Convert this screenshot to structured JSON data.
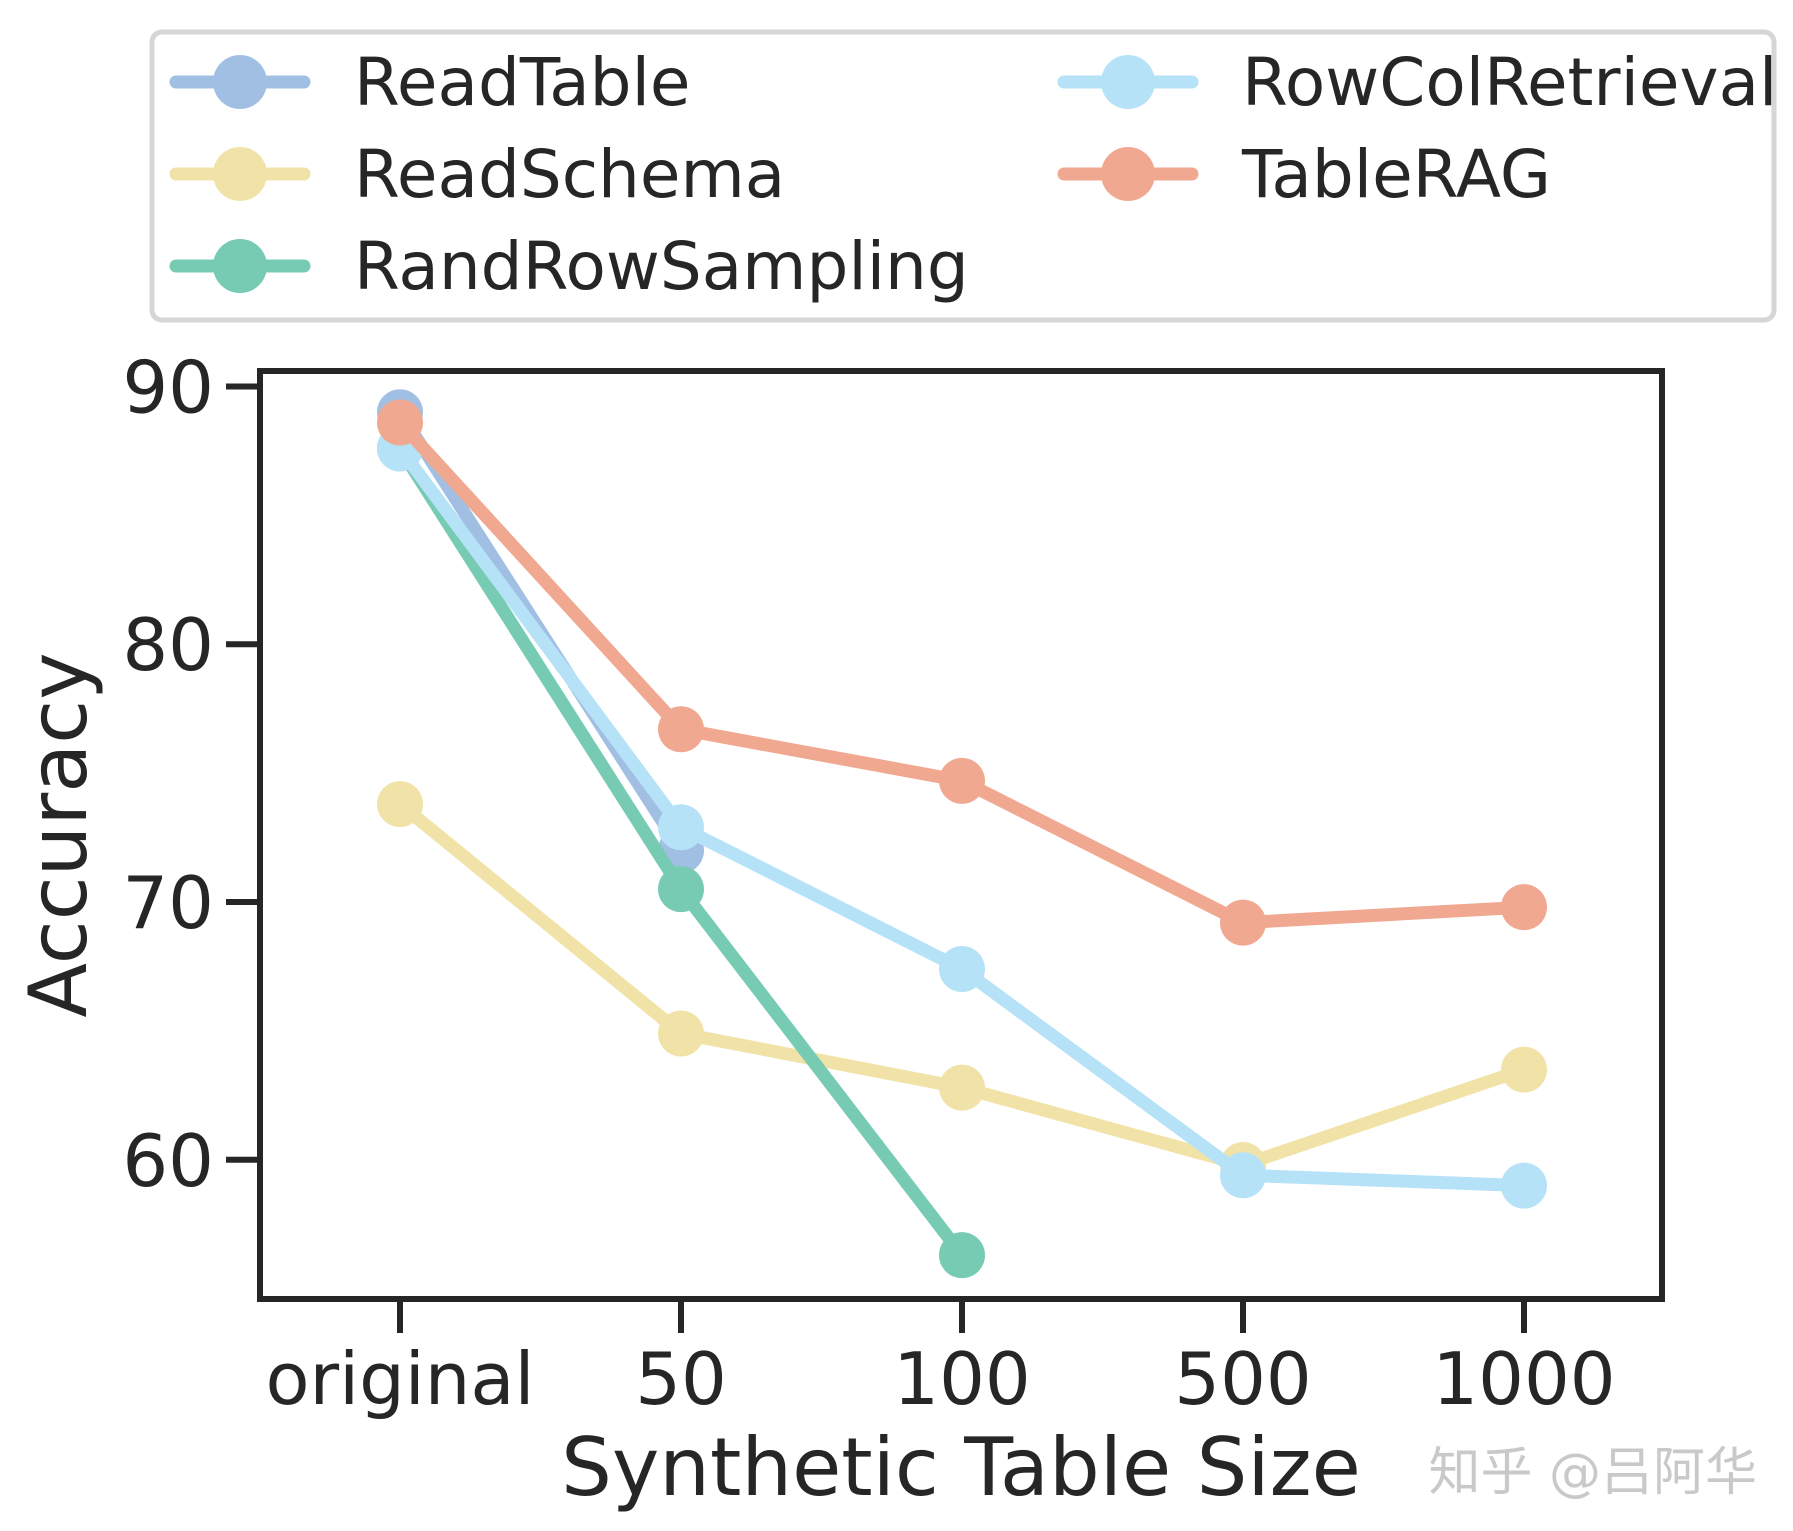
{
  "chart_data": {
    "type": "line",
    "title": "",
    "xlabel": "Synthetic Table Size",
    "ylabel": "Accuracy",
    "categories": [
      "original",
      "50",
      "100",
      "500",
      "1000"
    ],
    "yticks": [
      60,
      70,
      80,
      90
    ],
    "ylim": [
      54.6,
      90.6
    ],
    "grid": false,
    "legend_position": "top",
    "series": [
      {
        "name": "ReadTable",
        "color": "#a1bfe3",
        "values": [
          89.0,
          72.0,
          null,
          null,
          null
        ]
      },
      {
        "name": "ReadSchema",
        "color": "#f1e3a8",
        "values": [
          73.8,
          64.9,
          62.8,
          59.8,
          63.5
        ]
      },
      {
        "name": "RandRowSampling",
        "color": "#76cbb2",
        "values": [
          87.6,
          70.5,
          56.3,
          null,
          null
        ]
      },
      {
        "name": "RowColRetrieval",
        "color": "#b6e2f8",
        "values": [
          87.6,
          72.9,
          67.4,
          59.4,
          59.0
        ]
      },
      {
        "name": "TableRAG",
        "color": "#f0a890",
        "values": [
          88.6,
          76.7,
          74.7,
          69.2,
          69.8
        ]
      }
    ]
  },
  "watermark": "知乎 @吕阿华"
}
